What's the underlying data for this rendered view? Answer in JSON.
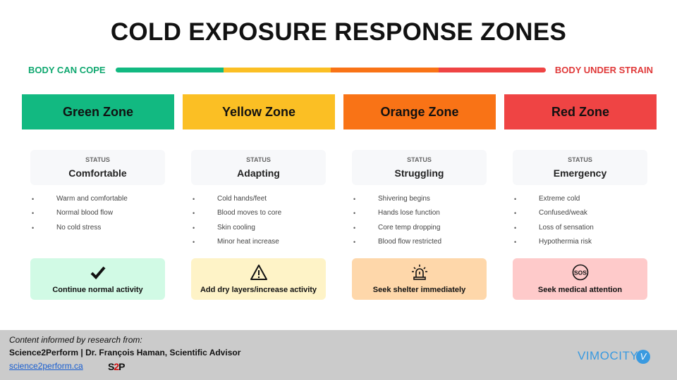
{
  "title": "COLD EXPOSURE RESPONSE ZONES",
  "scale": {
    "left_label": "BODY CAN COPE",
    "right_label": "BODY UNDER STRAIN"
  },
  "zones": [
    {
      "name": "Green Zone",
      "color": "#12b981",
      "status_label": "STATUS",
      "status": "Comfortable",
      "bullets": [
        "Warm and comfortable",
        "Normal blood flow",
        "No cold stress"
      ],
      "action": "Continue normal activity",
      "action_icon": "check-icon",
      "action_bg": "#d1fae5"
    },
    {
      "name": "Yellow Zone",
      "color": "#fbbf24",
      "status_label": "STATUS",
      "status": "Adapting",
      "bullets": [
        "Cold hands/feet",
        "Blood moves to core",
        "Skin cooling",
        "Minor heat increase"
      ],
      "action": "Add dry layers/increase activity",
      "action_icon": "warning-icon",
      "action_bg": "#fef3c7"
    },
    {
      "name": "Orange Zone",
      "color": "#f97316",
      "status_label": "STATUS",
      "status": "Struggling",
      "bullets": [
        "Shivering begins",
        "Hands lose function",
        "Core temp dropping",
        "Blood flow restricted"
      ],
      "action": "Seek shelter immediately",
      "action_icon": "alarm-siren-icon",
      "action_bg": "#fed7aa"
    },
    {
      "name": "Red Zone",
      "color": "#ef4444",
      "status_label": "STATUS",
      "status": "Emergency",
      "bullets": [
        "Extreme cold",
        "Confused/weak",
        "Loss of sensation",
        "Hypothermia risk"
      ],
      "action": "Seek medical attention",
      "action_icon": "sos-icon",
      "action_bg": "#fecaca"
    }
  ],
  "footer": {
    "intro": "Content informed by research from:",
    "credit": "Science2Perform | Dr. François Haman, Scientific Advisor",
    "link": "science2perform.ca",
    "s2p_logo": "S2P",
    "vimocity_logo": "VIMOCITY"
  }
}
